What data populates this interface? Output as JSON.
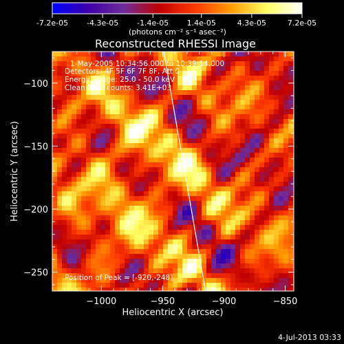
{
  "colorbar": {
    "tick_labels": [
      "-7.2e-05",
      "-4.3e-05",
      "-1.4e-05",
      "1.4e-05",
      "4.3e-05",
      "7.2e-05"
    ],
    "tick_values": [
      -7.2e-05,
      -4.3e-05,
      -1.4e-05,
      1.4e-05,
      4.3e-05,
      7.2e-05
    ],
    "range": [
      -7.2e-05,
      7.2e-05
    ],
    "unit_label": "(photons cm⁻² s⁻¹ asec⁻²)",
    "colormap": [
      "#0000ff",
      "#3a00a8",
      "#6f2d9a",
      "#c00000",
      "#ff3a00",
      "#ff9a00",
      "#ffff60",
      "#ffffff"
    ]
  },
  "chart_data": {
    "type": "heatmap",
    "title": "Reconstructed RHESSI Image",
    "xlabel": "Heliocentric X (arcsec)",
    "ylabel": "Heliocentric Y (arcsec)",
    "xlim": [
      -1040,
      -843
    ],
    "ylim": [
      -265,
      -75
    ],
    "x_ticks": [
      -1000,
      -950,
      -900,
      -850
    ],
    "y_ticks": [
      -250,
      -200,
      -150,
      -100
    ],
    "x_tick_labels": [
      "−1000",
      "−950",
      "−900",
      "−850"
    ],
    "y_tick_labels": [
      "−250",
      "−200",
      "−150",
      "−100"
    ],
    "limb_line": {
      "x": [
        -949,
        -915
      ],
      "y": [
        -75,
        -265
      ]
    },
    "annotations": [
      "1-May-2005 10:34:56.000 to 10:39:14.000",
      "Detectors: 4F 5F 6F 7F 8F, Att 0",
      "Energy Range: 25.0 - 50.0 keV",
      "Clean    Total counts: 3.41E+03"
    ],
    "peak_label": "Position of Peak = [-920,-248]",
    "peak": [
      -920,
      -248
    ]
  },
  "footer": {
    "date": "4-Jul-2013 03:33"
  }
}
